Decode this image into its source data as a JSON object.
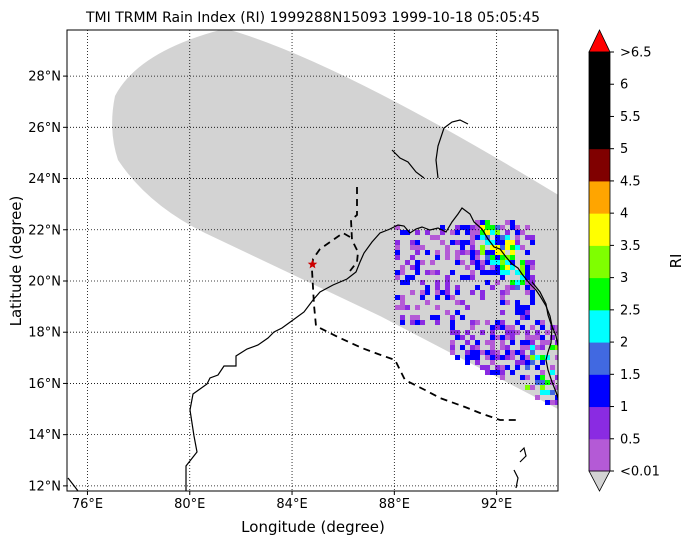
{
  "title": "TMI TRMM Rain Index (RI) 1999288N15093 1999-10-18 05:05:45",
  "map": {
    "xlabel": "Longitude (degree)",
    "ylabel": "Latitude (degree)",
    "xlim": [
      75.2,
      94.4
    ],
    "ylim": [
      11.8,
      29.8
    ],
    "x_ticks": [
      {
        "value": 76,
        "label": "76°E"
      },
      {
        "value": 80,
        "label": "80°E"
      },
      {
        "value": 84,
        "label": "84°E"
      },
      {
        "value": 88,
        "label": "88°E"
      },
      {
        "value": 92,
        "label": "92°E"
      }
    ],
    "y_ticks": [
      {
        "value": 12,
        "label": "12°N"
      },
      {
        "value": 14,
        "label": "14°N"
      },
      {
        "value": 16,
        "label": "16°N"
      },
      {
        "value": 18,
        "label": "18°N"
      },
      {
        "value": 20,
        "label": "20°N"
      },
      {
        "value": 22,
        "label": "22°N"
      },
      {
        "value": 24,
        "label": "24°N"
      },
      {
        "value": 26,
        "label": "26°N"
      },
      {
        "value": 28,
        "label": "28°N"
      }
    ],
    "grid": true,
    "swath_color": "#d3d3d3",
    "storm_marker": {
      "lon": 84.8,
      "lat": 20.65,
      "color": "#cc0000"
    }
  },
  "colorbar": {
    "label": "RI",
    "colors": [
      "#b45ad6",
      "#8a2be2",
      "#0000ff",
      "#4169e1",
      "#00ffff",
      "#00ff00",
      "#7fff00",
      "#ffff00",
      "#ffa500",
      "#800000",
      "#000000",
      "#000000",
      "#000000"
    ],
    "under_color": "#d3d3d3",
    "over_color": "#ff0000",
    "tick_labels": [
      "<0.01",
      "0.5",
      "1",
      "1.5",
      "2",
      "2.5",
      "3",
      "3.5",
      "4",
      "4.5",
      "5",
      "5.5",
      "6",
      ">6.5"
    ]
  }
}
